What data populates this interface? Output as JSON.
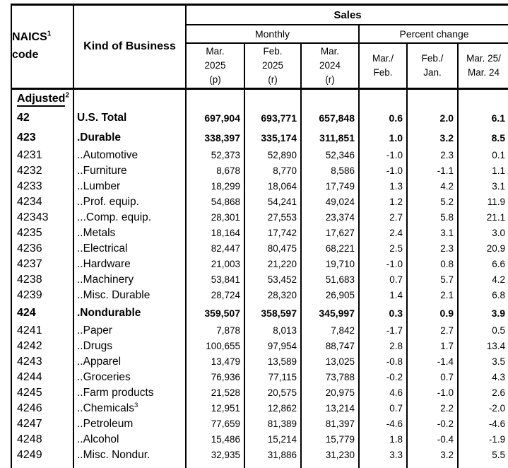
{
  "colors": {
    "text": "#000000",
    "background": "#ffffff",
    "border": "#000000"
  },
  "header": {
    "naics_line1": "NAICS",
    "naics_sup": "1",
    "naics_line2": "code",
    "kind_of_business": "Kind of Business",
    "sales": "Sales",
    "monthly": "Monthly",
    "percent_change": "Percent change",
    "col_heads": [
      "Mar.\n2025\n(p)",
      "Feb.\n2025\n(r)",
      "Mar.\n2024\n(r)",
      "Mar./\nFeb.",
      "Feb./\nJan.",
      "Mar. 25/\nMar. 24"
    ]
  },
  "section": {
    "label": "Adjusted",
    "sup": "2"
  },
  "rows": [
    {
      "code": "42",
      "kind": "U.S. Total",
      "kind_sup": "",
      "bold": true,
      "values": [
        "697,904",
        "693,771",
        "657,848",
        "0.6",
        "2.0",
        "6.1"
      ]
    },
    {
      "code": "423",
      "kind": ".Durable",
      "kind_sup": "",
      "bold": true,
      "values": [
        "338,397",
        "335,174",
        "311,851",
        "1.0",
        "3.2",
        "8.5"
      ]
    },
    {
      "code": "4231",
      "kind": "..Automotive",
      "kind_sup": "",
      "bold": false,
      "values": [
        "52,373",
        "52,890",
        "52,346",
        "-1.0",
        "2.3",
        "0.1"
      ]
    },
    {
      "code": "4232",
      "kind": "..Furniture",
      "kind_sup": "",
      "bold": false,
      "values": [
        "8,678",
        "8,770",
        "8,586",
        "-1.0",
        "-1.1",
        "1.1"
      ]
    },
    {
      "code": "4233",
      "kind": "..Lumber",
      "kind_sup": "",
      "bold": false,
      "values": [
        "18,299",
        "18,064",
        "17,749",
        "1.3",
        "4.2",
        "3.1"
      ]
    },
    {
      "code": "4234",
      "kind": "..Prof. equip.",
      "kind_sup": "",
      "bold": false,
      "values": [
        "54,868",
        "54,241",
        "49,024",
        "1.2",
        "5.2",
        "11.9"
      ]
    },
    {
      "code": "42343",
      "kind": "...Comp. equip.",
      "kind_sup": "",
      "bold": false,
      "values": [
        "28,301",
        "27,553",
        "23,374",
        "2.7",
        "5.8",
        "21.1"
      ]
    },
    {
      "code": "4235",
      "kind": "..Metals",
      "kind_sup": "",
      "bold": false,
      "values": [
        "18,164",
        "17,742",
        "17,627",
        "2.4",
        "3.1",
        "3.0"
      ]
    },
    {
      "code": "4236",
      "kind": "..Electrical",
      "kind_sup": "",
      "bold": false,
      "values": [
        "82,447",
        "80,475",
        "68,221",
        "2.5",
        "2.3",
        "20.9"
      ]
    },
    {
      "code": "4237",
      "kind": "..Hardware",
      "kind_sup": "",
      "bold": false,
      "values": [
        "21,003",
        "21,220",
        "19,710",
        "-1.0",
        "0.8",
        "6.6"
      ]
    },
    {
      "code": "4238",
      "kind": "..Machinery",
      "kind_sup": "",
      "bold": false,
      "values": [
        "53,841",
        "53,452",
        "51,683",
        "0.7",
        "5.7",
        "4.2"
      ]
    },
    {
      "code": "4239",
      "kind": "..Misc. Durable",
      "kind_sup": "",
      "bold": false,
      "values": [
        "28,724",
        "28,320",
        "26,905",
        "1.4",
        "2.1",
        "6.8"
      ]
    },
    {
      "code": "424",
      "kind": ".Nondurable",
      "kind_sup": "",
      "bold": true,
      "values": [
        "359,507",
        "358,597",
        "345,997",
        "0.3",
        "0.9",
        "3.9"
      ]
    },
    {
      "code": "4241",
      "kind": "..Paper",
      "kind_sup": "",
      "bold": false,
      "values": [
        "7,878",
        "8,013",
        "7,842",
        "-1.7",
        "2.7",
        "0.5"
      ]
    },
    {
      "code": "4242",
      "kind": "..Drugs",
      "kind_sup": "",
      "bold": false,
      "values": [
        "100,655",
        "97,954",
        "88,747",
        "2.8",
        "1.7",
        "13.4"
      ]
    },
    {
      "code": "4243",
      "kind": "..Apparel",
      "kind_sup": "",
      "bold": false,
      "values": [
        "13,479",
        "13,589",
        "13,025",
        "-0.8",
        "-1.4",
        "3.5"
      ]
    },
    {
      "code": "4244",
      "kind": "..Groceries",
      "kind_sup": "",
      "bold": false,
      "values": [
        "76,936",
        "77,115",
        "73,788",
        "-0.2",
        "0.7",
        "4.3"
      ]
    },
    {
      "code": "4245",
      "kind": "..Farm products",
      "kind_sup": "",
      "bold": false,
      "values": [
        "21,528",
        "20,575",
        "20,975",
        "4.6",
        "-1.0",
        "2.6"
      ]
    },
    {
      "code": "4246",
      "kind": "..Chemicals",
      "kind_sup": "3",
      "bold": false,
      "values": [
        "12,951",
        "12,862",
        "13,214",
        "0.7",
        "2.2",
        "-2.0"
      ]
    },
    {
      "code": "4247",
      "kind": "..Petroleum",
      "kind_sup": "",
      "bold": false,
      "values": [
        "77,659",
        "81,389",
        "81,397",
        "-4.6",
        "-0.2",
        "-4.6"
      ]
    },
    {
      "code": "4248",
      "kind": "..Alcohol",
      "kind_sup": "",
      "bold": false,
      "values": [
        "15,486",
        "15,214",
        "15,779",
        "1.8",
        "-0.4",
        "-1.9"
      ]
    },
    {
      "code": "4249",
      "kind": "..Misc. Nondur.",
      "kind_sup": "",
      "bold": false,
      "values": [
        "32,935",
        "31,886",
        "31,230",
        "3.3",
        "3.2",
        "5.5"
      ]
    }
  ]
}
